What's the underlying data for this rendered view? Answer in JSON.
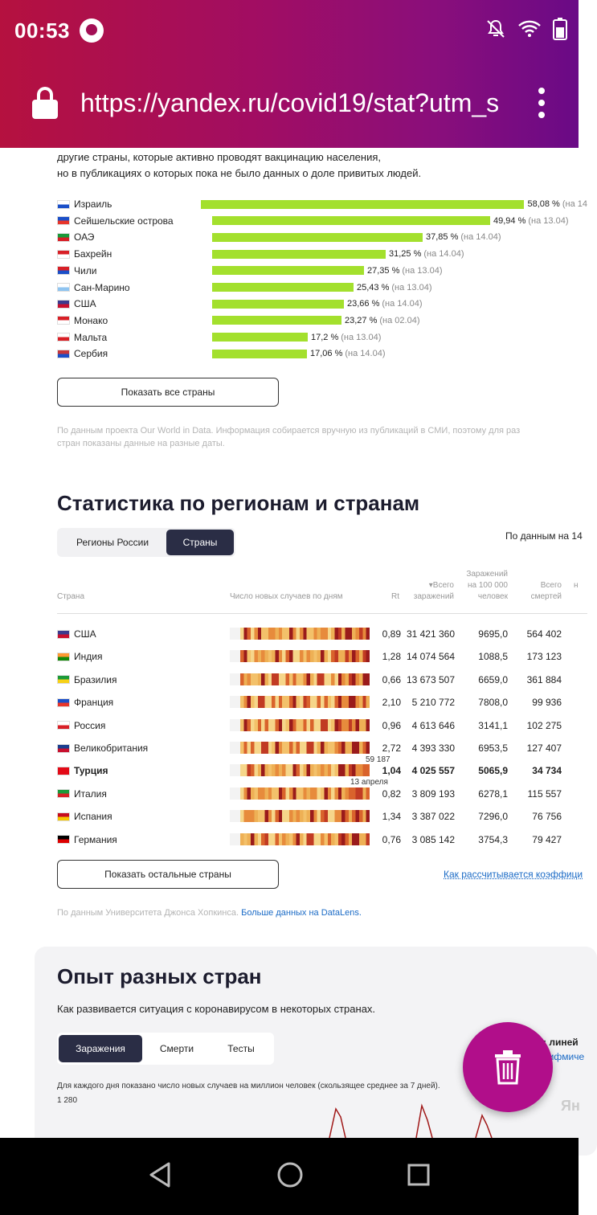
{
  "status_bar": {
    "time": "00:53"
  },
  "browser": {
    "url": "https://yandex.ru/covid19/stat?utm_s"
  },
  "vaccination": {
    "intro_lines": [
      "другие страны, которые активно проводят вакцинацию населения,",
      "но в публикациях о которых пока не было данных о доле привитых людей."
    ],
    "rows": [
      {
        "country": "Израиль",
        "share": 58.08,
        "pct": "58,08 %",
        "date": "(на 14"
      },
      {
        "country": "Сейшельские острова",
        "share": 49.94,
        "pct": "49,94 %",
        "date": "(на 13.04)"
      },
      {
        "country": "ОАЭ",
        "share": 37.85,
        "pct": "37,85 %",
        "date": "(на 14.04)"
      },
      {
        "country": "Бахрейн",
        "share": 31.25,
        "pct": "31,25 %",
        "date": "(на 14.04)"
      },
      {
        "country": "Чили",
        "share": 27.35,
        "pct": "27,35 %",
        "date": "(на 13.04)"
      },
      {
        "country": "Сан-Марино",
        "share": 25.43,
        "pct": "25,43 %",
        "date": "(на 13.04)"
      },
      {
        "country": "США",
        "share": 23.66,
        "pct": "23,66 %",
        "date": "(на 14.04)"
      },
      {
        "country": "Монако",
        "share": 23.27,
        "pct": "23,27 %",
        "date": "(на 02.04)"
      },
      {
        "country": "Мальта",
        "share": 17.2,
        "pct": "17,2 %",
        "date": "(на 13.04)"
      },
      {
        "country": "Сербия",
        "share": 17.06,
        "pct": "17,06 %",
        "date": "(на 14.04)"
      }
    ],
    "show_all_button": "Показать все страны",
    "note_lines": [
      "По данным проекта Our World in Data. Информация собирается вручную из публикаций в СМИ, поэтому для раз",
      "стран показаны данные на разные даты."
    ]
  },
  "stats": {
    "title": "Статистика по регионам и странам",
    "tabs": [
      "Регионы России",
      "Страны"
    ],
    "active_tab": 1,
    "source_top": "По данным на 14",
    "headers": {
      "country": "Страна",
      "daily": "Число новых случаев по дням",
      "rt": "Rt",
      "total": "▾Всего заражений",
      "per100k": "Заражений на 100 000 человек",
      "deaths": "Всего смертей",
      "extra": "н"
    },
    "rows": [
      {
        "country": "США",
        "rt": "0,89",
        "total": "31 421 360",
        "per100k": "9695,0",
        "deaths": "564 402"
      },
      {
        "country": "Индия",
        "rt": "1,28",
        "total": "14 074 564",
        "per100k": "1088,5",
        "deaths": "173 123"
      },
      {
        "country": "Бразилия",
        "rt": "0,66",
        "total": "13 673 507",
        "per100k": "6659,0",
        "deaths": "361 884"
      },
      {
        "country": "Франция",
        "rt": "2,10",
        "total": "5 210 772",
        "per100k": "7808,0",
        "deaths": "99 936"
      },
      {
        "country": "Россия",
        "rt": "0,96",
        "total": "4 613 646",
        "per100k": "3141,1",
        "deaths": "102 275"
      },
      {
        "country": "Великобритания",
        "rt": "2,72",
        "total": "4 393 330",
        "per100k": "6953,5",
        "deaths": "127 407"
      },
      {
        "country": "Турция",
        "rt": "1,04",
        "total": "4 025 557",
        "per100k": "5065,9",
        "deaths": "34 734",
        "highlight": true
      },
      {
        "country": "Италия",
        "rt": "0,82",
        "total": "3 809 193",
        "per100k": "6278,1",
        "deaths": "115 557"
      },
      {
        "country": "Испания",
        "rt": "1,34",
        "total": "3 387 022",
        "per100k": "7296,0",
        "deaths": "76 756"
      },
      {
        "country": "Германия",
        "rt": "0,76",
        "total": "3 085 142",
        "per100k": "3754,3",
        "deaths": "79 427"
      }
    ],
    "tooltip_value": "59 187",
    "tooltip_date": "13 апреля",
    "show_rest_button": "Показать остальные страны",
    "coef_link": "Как рассчитывается коэффици",
    "source_note": "По данным Университета Джонса Хопкинса.",
    "datalens_link": "Больше данных на DataLens."
  },
  "experience": {
    "title": "Опыт разных стран",
    "subtitle": "Как развивается ситуация с коронавирусом в некоторых странах.",
    "tabs": [
      "Заражения",
      "Смерти",
      "Тесты"
    ],
    "active_tab": 0,
    "scale_label": ": линей",
    "scale_link": "рифмиче",
    "chart_note": "Для каждого дня показано число новых случаев на миллион человек (скользящее среднее за 7 дней).",
    "y_top": "1 280",
    "watermark": "Ян"
  },
  "colors": {
    "bar": "#a3e02d",
    "brand_gradient_start": "#b5113f",
    "brand_gradient_end": "#6a0a86",
    "fab": "#b10e8a",
    "segment_active": "#2a2d45",
    "link": "#1b6bc6"
  }
}
